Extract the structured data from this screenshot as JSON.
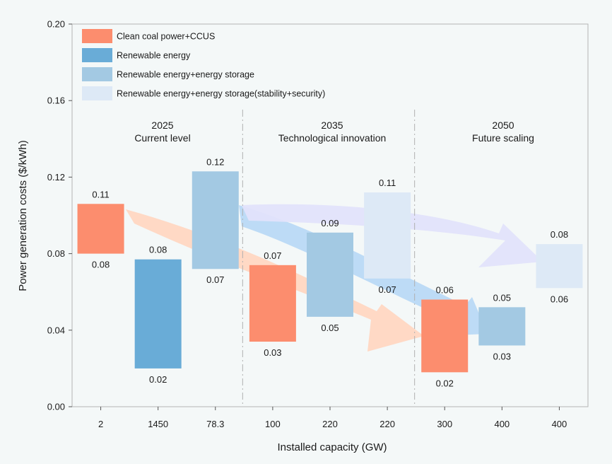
{
  "chart_data": {
    "type": "floating-bar",
    "xlabel": "Installed capacity (GW)",
    "ylabel": "Power generation costs ($/kWh)",
    "ylim": [
      0,
      0.2
    ],
    "yticks": [
      "0.00",
      "0.04",
      "0.08",
      "0.12",
      "0.16",
      "0.20"
    ],
    "categories": [
      "2",
      "1450",
      "78.3",
      "100",
      "220",
      "220",
      "300",
      "400",
      "400"
    ],
    "periods": [
      {
        "year": "2025",
        "label": "Current level"
      },
      {
        "year": "2035",
        "label": "Technological innovation"
      },
      {
        "year": "2050",
        "label": "Future scaling"
      }
    ],
    "legend": [
      {
        "name": "Clean coal power+CCUS",
        "color": "#fc8d6e"
      },
      {
        "name": "Renewable energy",
        "color": "#69acd7"
      },
      {
        "name": "Renewable energy+energy storage",
        "color": "#a3c9e3"
      },
      {
        "name": "Renewable energy+energy storage(stability+security)",
        "color": "#dde9f6"
      }
    ],
    "bars": [
      {
        "series": 0,
        "low": 0.08,
        "high": 0.106,
        "low_label": "0.08",
        "high_label": "0.11"
      },
      {
        "series": 1,
        "low": 0.02,
        "high": 0.077,
        "low_label": "0.02",
        "high_label": "0.08"
      },
      {
        "series": 2,
        "low": 0.072,
        "high": 0.123,
        "low_label": "0.07",
        "high_label": "0.12"
      },
      {
        "series": 0,
        "low": 0.034,
        "high": 0.074,
        "low_label": "0.03",
        "high_label": "0.07"
      },
      {
        "series": 2,
        "low": 0.047,
        "high": 0.091,
        "low_label": "0.05",
        "high_label": "0.09"
      },
      {
        "series": 3,
        "low": 0.067,
        "high": 0.112,
        "low_label": "0.07",
        "high_label": "0.11"
      },
      {
        "series": 0,
        "low": 0.018,
        "high": 0.056,
        "low_label": "0.02",
        "high_label": "0.06"
      },
      {
        "series": 2,
        "low": 0.032,
        "high": 0.052,
        "low_label": "0.03",
        "high_label": "0.05"
      },
      {
        "series": 3,
        "low": 0.062,
        "high": 0.085,
        "low_label": "0.06",
        "high_label": "0.08"
      }
    ],
    "arrow_colors": [
      "#ffd7c2",
      "#b9d9f6",
      "#e2e3fb"
    ],
    "grid": false,
    "legend_position": "top-left"
  }
}
